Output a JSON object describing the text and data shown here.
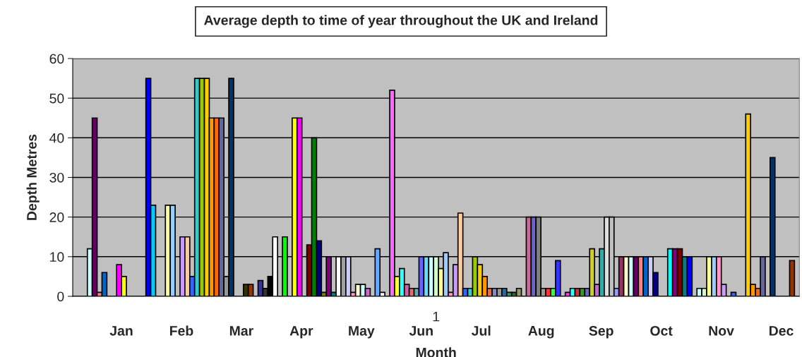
{
  "chart_data": {
    "type": "bar",
    "title": "Average depth to time of year throughout the UK and Ireland",
    "xlabel": "Month",
    "ylabel": "Depth Metres",
    "categories": [
      null,
      null,
      null,
      null,
      null,
      null,
      null,
      null,
      null,
      null,
      null,
      null,
      null,
      null,
      null,
      null,
      null,
      null,
      null,
      null,
      null,
      null,
      null,
      null,
      null,
      null,
      null,
      null,
      null,
      null,
      null,
      null,
      null,
      null,
      null,
      null,
      null,
      null,
      null,
      null,
      null,
      null,
      null,
      null,
      null,
      null,
      null,
      null,
      null,
      null,
      null,
      null,
      null,
      null,
      null,
      null,
      null,
      null,
      null,
      null,
      null,
      null,
      null,
      null,
      null,
      null,
      null,
      null,
      null,
      null,
      null,
      null,
      null,
      null,
      null,
      null,
      null,
      null,
      null,
      null,
      null,
      null,
      null,
      null,
      null,
      null,
      null,
      null,
      null,
      null,
      null,
      null,
      null,
      null,
      null,
      null,
      null,
      null,
      null,
      null,
      null,
      null,
      null,
      null,
      null,
      null,
      null,
      null,
      null,
      null,
      null,
      null,
      null,
      null,
      null,
      null,
      null,
      null,
      null,
      null,
      null,
      null,
      null,
      null,
      null,
      null,
      null,
      null,
      null,
      null,
      null,
      null,
      null,
      null,
      null,
      null,
      null,
      null,
      null,
      null,
      null,
      null,
      null,
      null,
      null,
      null,
      null,
      null,
      null
    ],
    "values": [
      null,
      null,
      null,
      12,
      45,
      1,
      6,
      null,
      null,
      8,
      5,
      null,
      null,
      null,
      null,
      55,
      23,
      null,
      null,
      23,
      23,
      null,
      15,
      15,
      5,
      55,
      55,
      55,
      45,
      45,
      45,
      5,
      55,
      null,
      null,
      3,
      3,
      null,
      4,
      2,
      5,
      15,
      null,
      15,
      null,
      45,
      45,
      null,
      13,
      40,
      14,
      1,
      10,
      1,
      10,
      10,
      10,
      1,
      3,
      3,
      2,
      null,
      12,
      1,
      null,
      52,
      5,
      7,
      3,
      2,
      2,
      10,
      10,
      10,
      10,
      7,
      11,
      1,
      8,
      21,
      2,
      2,
      10,
      8,
      5,
      2,
      2,
      2,
      2,
      1,
      1,
      2,
      null,
      20,
      20,
      20,
      2,
      2,
      2,
      9,
      null,
      1,
      2,
      2,
      2,
      2,
      12,
      3,
      12,
      20,
      20,
      2,
      10,
      10,
      10,
      10,
      10,
      10,
      10,
      6,
      null,
      null,
      12,
      12,
      12,
      10,
      10,
      null,
      2,
      2,
      10,
      10,
      10,
      3,
      null,
      1,
      null,
      null,
      46,
      3,
      2,
      10,
      null,
      35,
      null,
      null,
      null,
      9,
      null
    ],
    "colors": [
      null,
      null,
      null,
      "#ccffff",
      "#660066",
      "#ff8080",
      "#0066cc",
      null,
      null,
      "#ff00ff",
      "#ffff00",
      null,
      null,
      null,
      null,
      "#0000ff",
      "#00ccff",
      null,
      null,
      "#ffff99",
      "#99ccff",
      null,
      "#cc99ff",
      "#ffcc99",
      "#3366ff",
      "#33cccc",
      "#99cc00",
      "#ffcc00",
      "#ff9900",
      "#ff6600",
      "#666699",
      "#969696",
      "#003366",
      null,
      null,
      "#333300",
      "#993300",
      null,
      "#333399",
      "#333333",
      "#000000",
      "#ffffff",
      null,
      "#00ff00",
      null,
      "#ffff00",
      "#ff00ff",
      null,
      "#800000",
      "#008000",
      "#000080",
      "#808000",
      "#800080",
      "#008080",
      "#ffffff",
      "#a0a0a0",
      "#ccccff",
      "#ff99cc",
      "#ffffcc",
      "#ccffff",
      "#cc66cc",
      null,
      "#66aaff",
      "#ffffff",
      null,
      "#ff66ff",
      "#ffff33",
      "#33ffff",
      "#cc66aa",
      "#e07070",
      "#66aaaa",
      "#6666ff",
      "#66ddff",
      "#ccffff",
      "#ccffcc",
      "#ffff99",
      "#99ccff",
      "#ff99cc",
      "#cc99ff",
      "#ffcc99",
      "#3366ff",
      "#33cccc",
      "#99cc00",
      "#ffcc00",
      "#ff9900",
      "#ff6633",
      "#8888bb",
      "#999999",
      "#336699",
      "#339966",
      "#336633",
      "#999966",
      null,
      "#cc6699",
      "#6666cc",
      "#808080",
      "#999999",
      "#ff3333",
      "#33ff33",
      "#3333ff",
      null,
      "#ff33ff",
      "#33ffff",
      "#cc3333",
      "#339933",
      "#6666cc",
      "#cccc33",
      "#cc66cc",
      "#33aaaa",
      "#dddddd",
      "#c0c0c0",
      "#9999ff",
      "#993366",
      "#ffffcc",
      "#ccffff",
      "#660066",
      "#ff8080",
      "#0066cc",
      "#ccccff",
      "#000080",
      null,
      null,
      "#00ffff",
      "#800080",
      "#800000",
      "#008080",
      "#0000ff",
      null,
      "#ccffff",
      "#ccffcc",
      "#ffff99",
      "#99ccff",
      "#ff99cc",
      "#cc99ff",
      null,
      "#3366ff",
      null,
      null,
      "#ffcc00",
      "#ff9900",
      "#ff6600",
      "#666699",
      null,
      "#003366",
      null,
      null,
      null,
      "#993300",
      null
    ],
    "ylim": [
      0,
      60
    ],
    "yticks": [
      0,
      10,
      20,
      30,
      40,
      50,
      60
    ],
    "grid": "y",
    "annotations": [
      "1",
      "Jan",
      "Feb",
      "Mar",
      "Apr",
      "May",
      "Jun",
      "Jul",
      "Aug",
      "Sep",
      "Oct",
      "Nov",
      "Dec"
    ]
  }
}
